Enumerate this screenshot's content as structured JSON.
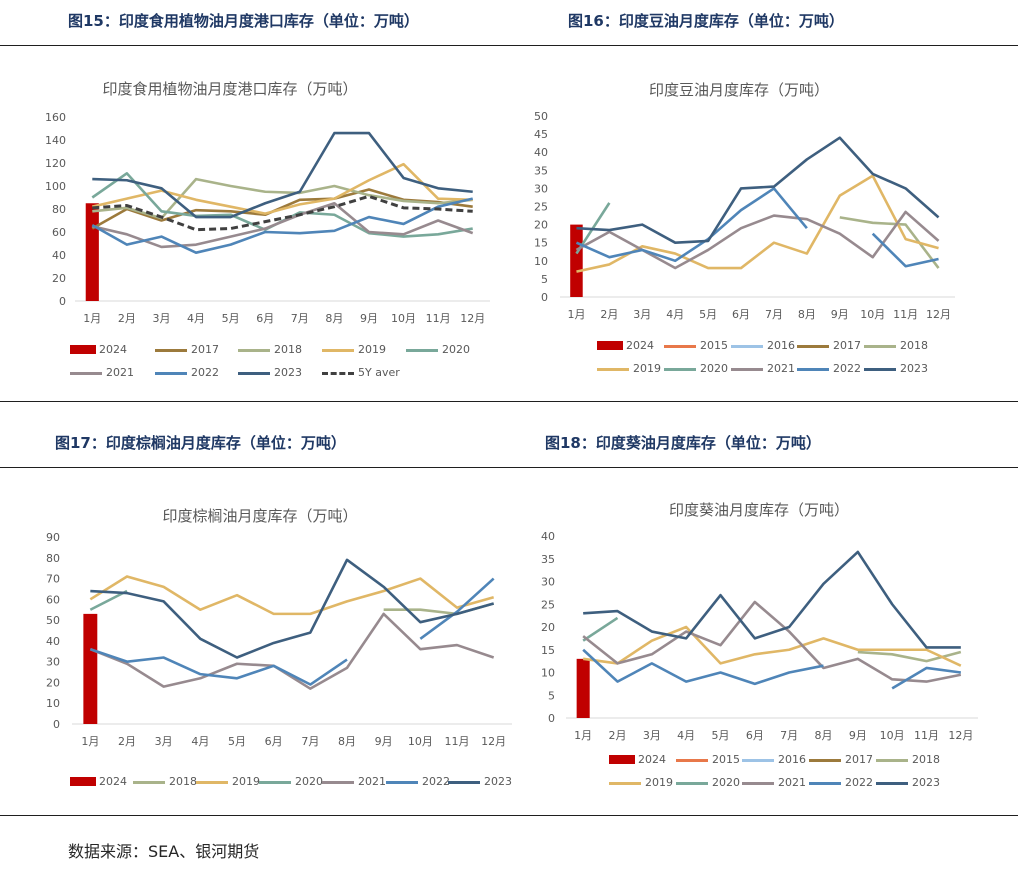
{
  "source": "数据来源：SEA、银河期货",
  "charts": [
    {
      "figure_title": "图15：印度食用植物油月度港口库存（单位：万吨）",
      "chart_title": "印度食用植物油月度港口库存（万吨）",
      "type": "line",
      "categories": [
        "1月",
        "2月",
        "3月",
        "4月",
        "5月",
        "6月",
        "7月",
        "8月",
        "9月",
        "10月",
        "11月",
        "12月"
      ],
      "ylim": [
        0,
        160
      ],
      "yticks": [
        0,
        20,
        40,
        60,
        80,
        100,
        120,
        140,
        160
      ],
      "grid": false,
      "legend_position": "bottom",
      "bar_series": {
        "name": "2024",
        "color": "#c00000",
        "values": [
          85
        ]
      },
      "series": [
        {
          "name": "2017",
          "color": "#9c7a3c",
          "values": [
            63,
            80,
            70,
            79,
            78,
            75,
            88,
            89,
            97,
            88,
            86,
            82
          ]
        },
        {
          "name": "2018",
          "color": "#a9b38a",
          "values": [
            78,
            81,
            72,
            106,
            100,
            95,
            94,
            100,
            92,
            87,
            85,
            88
          ]
        },
        {
          "name": "2019",
          "color": "#e0b766",
          "values": [
            82,
            89,
            96,
            88,
            82,
            76,
            84,
            89,
            105,
            119,
            89,
            88
          ]
        },
        {
          "name": "2020",
          "color": "#79a89a",
          "values": [
            90,
            111,
            78,
            74,
            75,
            62,
            77,
            75,
            59,
            56,
            58,
            63
          ]
        },
        {
          "name": "2021",
          "color": "#978a8f",
          "values": [
            65,
            58,
            47,
            49,
            56,
            63,
            75,
            85,
            60,
            58,
            70,
            59
          ]
        },
        {
          "name": "2022",
          "color": "#4f85b8",
          "values": [
            66,
            49,
            56,
            42,
            49,
            60,
            59,
            61,
            73,
            67,
            82,
            89
          ]
        },
        {
          "name": "2023",
          "color": "#3e5f7f",
          "values": [
            106,
            105,
            98,
            73,
            73,
            85,
            95,
            146,
            146,
            107,
            98,
            95
          ]
        },
        {
          "name": "5Y aver",
          "color": "#404040",
          "dashed": true,
          "values": [
            81,
            83,
            73,
            62,
            63,
            69,
            75,
            82,
            91,
            81,
            80,
            78
          ]
        }
      ]
    },
    {
      "figure_title": "图16：印度豆油月度库存（单位：万吨）",
      "chart_title": "印度豆油月度库存（万吨）",
      "type": "line",
      "categories": [
        "1月",
        "2月",
        "3月",
        "4月",
        "5月",
        "6月",
        "7月",
        "8月",
        "9月",
        "10月",
        "11月",
        "12月"
      ],
      "ylim": [
        0,
        50
      ],
      "yticks": [
        0,
        5,
        10,
        15,
        20,
        25,
        30,
        35,
        40,
        45,
        50
      ],
      "grid": false,
      "legend_position": "bottom",
      "bar_series": {
        "name": "2024",
        "color": "#c00000",
        "values": [
          20
        ]
      },
      "series": [
        {
          "name": "2015",
          "color": "#e8784a",
          "values": []
        },
        {
          "name": "2016",
          "color": "#9dc3e6",
          "values": []
        },
        {
          "name": "2017",
          "color": "#9c7a3c",
          "values": []
        },
        {
          "name": "2018",
          "color": "#a9b38a",
          "values": [
            null,
            null,
            null,
            null,
            null,
            null,
            null,
            null,
            22,
            20.5,
            20,
            8
          ]
        },
        {
          "name": "2019",
          "color": "#e0b766",
          "values": [
            7,
            9,
            14,
            12,
            8,
            8,
            15,
            12,
            28,
            33.5,
            16,
            13.5
          ]
        },
        {
          "name": "2020",
          "color": "#79a89a",
          "values": [
            12,
            26
          ]
        },
        {
          "name": "2021",
          "color": "#978a8f",
          "values": [
            13,
            18,
            13,
            8,
            13,
            19,
            22.5,
            21.5,
            17.5,
            11,
            23.5,
            15.5
          ]
        },
        {
          "name": "2022",
          "color": "#4f85b8",
          "values": [
            15,
            11,
            13,
            10,
            16,
            24,
            30,
            19,
            null,
            17.5,
            8.5,
            10.5
          ]
        },
        {
          "name": "2023",
          "color": "#3e5f7f",
          "values": [
            19,
            18.5,
            20,
            15,
            15.5,
            30,
            30.5,
            38,
            44,
            34,
            30,
            22
          ]
        }
      ]
    },
    {
      "figure_title": "图17：印度棕榈油月度库存（单位：万吨）",
      "chart_title": "印度棕榈油月度库存（万吨）",
      "type": "line",
      "categories": [
        "1月",
        "2月",
        "3月",
        "4月",
        "5月",
        "6月",
        "7月",
        "8月",
        "9月",
        "10月",
        "11月",
        "12月"
      ],
      "ylim": [
        0,
        90
      ],
      "yticks": [
        0,
        10,
        20,
        30,
        40,
        50,
        60,
        70,
        80,
        90
      ],
      "grid": false,
      "legend_position": "bottom",
      "bar_series": {
        "name": "2024",
        "color": "#c00000",
        "values": [
          53
        ]
      },
      "series": [
        {
          "name": "2018",
          "color": "#a9b38a",
          "values": [
            null,
            null,
            null,
            null,
            null,
            null,
            null,
            null,
            55,
            55,
            53,
            58
          ]
        },
        {
          "name": "2019",
          "color": "#e0b766",
          "values": [
            60,
            71,
            66,
            55,
            62,
            53,
            53,
            59,
            64,
            70,
            56,
            61
          ]
        },
        {
          "name": "2020",
          "color": "#79a89a",
          "values": [
            55,
            64
          ]
        },
        {
          "name": "2021",
          "color": "#978a8f",
          "values": [
            36,
            29,
            18,
            22,
            29,
            28,
            17,
            27,
            53,
            36,
            38,
            32
          ]
        },
        {
          "name": "2022",
          "color": "#4f85b8",
          "values": [
            36,
            30,
            32,
            24,
            22,
            28,
            19,
            31,
            null,
            41,
            54,
            70
          ]
        },
        {
          "name": "2023",
          "color": "#3e5f7f",
          "values": [
            64,
            63,
            59,
            41,
            32,
            39,
            44,
            79,
            66,
            49,
            53,
            58
          ]
        }
      ]
    },
    {
      "figure_title": "图18：印度葵油月度库存（单位：万吨）",
      "chart_title": "印度葵油月度库存（万吨）",
      "type": "line",
      "categories": [
        "1月",
        "2月",
        "3月",
        "4月",
        "5月",
        "6月",
        "7月",
        "8月",
        "9月",
        "10月",
        "11月",
        "12月"
      ],
      "ylim": [
        0,
        40
      ],
      "yticks": [
        0,
        5,
        10,
        15,
        20,
        25,
        30,
        35,
        40
      ],
      "grid": false,
      "legend_position": "bottom",
      "bar_series": {
        "name": "2024",
        "color": "#c00000",
        "values": [
          13
        ]
      },
      "series": [
        {
          "name": "2015",
          "color": "#e8784a",
          "values": []
        },
        {
          "name": "2016",
          "color": "#9dc3e6",
          "values": []
        },
        {
          "name": "2017",
          "color": "#9c7a3c",
          "values": []
        },
        {
          "name": "2018",
          "color": "#a9b38a",
          "values": [
            null,
            null,
            null,
            null,
            null,
            null,
            null,
            null,
            14.5,
            14,
            12.5,
            14.5
          ]
        },
        {
          "name": "2019",
          "color": "#e0b766",
          "values": [
            13,
            12,
            17,
            20,
            12,
            14,
            15,
            17.5,
            15,
            15,
            15,
            11.5
          ]
        },
        {
          "name": "2020",
          "color": "#79a89a",
          "values": [
            17,
            22
          ]
        },
        {
          "name": "2021",
          "color": "#978a8f",
          "values": [
            18,
            12,
            14,
            19,
            16,
            25.5,
            19,
            11,
            13,
            8.5,
            8,
            9.5
          ]
        },
        {
          "name": "2022",
          "color": "#4f85b8",
          "values": [
            15,
            8,
            12,
            8,
            10,
            7.5,
            10,
            11.5,
            null,
            6.5,
            11,
            10
          ]
        },
        {
          "name": "2023",
          "color": "#3e5f7f",
          "values": [
            23,
            23.5,
            19,
            17.5,
            27,
            17.5,
            20,
            29.5,
            36.5,
            25,
            15.5,
            15.5
          ]
        }
      ]
    }
  ]
}
